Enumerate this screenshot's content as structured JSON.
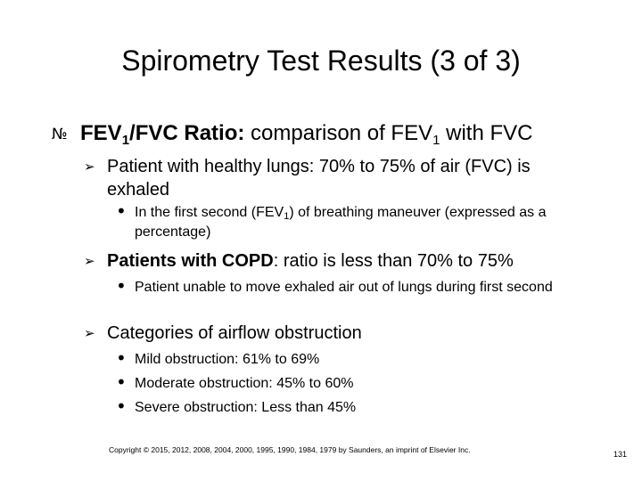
{
  "slide": {
    "title": "Spirometry Test Results (3 of 3)"
  },
  "bullet_1": {
    "marker": "№",
    "label_part1": "FEV",
    "label_sub": "1",
    "label_part2": "/FVC Ratio:",
    "text_part1": " comparison of FEV",
    "text_sub": "1",
    "text_part2": " with FVC"
  },
  "sub_1": {
    "marker": "➢",
    "text": "Patient with healthy lungs: 70% to 75% of air (FVC) is exhaled",
    "detail": {
      "marker": "•",
      "text_part1": "In the first second (FEV",
      "text_sub": "1",
      "text_part2": ") of breathing maneuver (expressed as a percentage)"
    }
  },
  "sub_2": {
    "marker": "➢",
    "bold_text": "Patients with COPD",
    "text": ": ratio is less than 70% to 75%",
    "detail": {
      "marker": "•",
      "text": "Patient unable to move exhaled air out of lungs during first second"
    }
  },
  "sub_3": {
    "marker": "➢",
    "text": "Categories of airflow obstruction",
    "details": [
      {
        "marker": "•",
        "text": "Mild obstruction: 61% to 69%"
      },
      {
        "marker": "•",
        "text": "Moderate obstruction: 45% to 60%"
      },
      {
        "marker": "•",
        "text": "Severe obstruction: Less than 45%"
      }
    ]
  },
  "footer": {
    "copyright": "Copyright © 2015, 2012, 2008, 2004, 2000, 1995, 1990, 1984, 1979 by Saunders, an imprint of Elsevier Inc.",
    "page_number": "131"
  }
}
